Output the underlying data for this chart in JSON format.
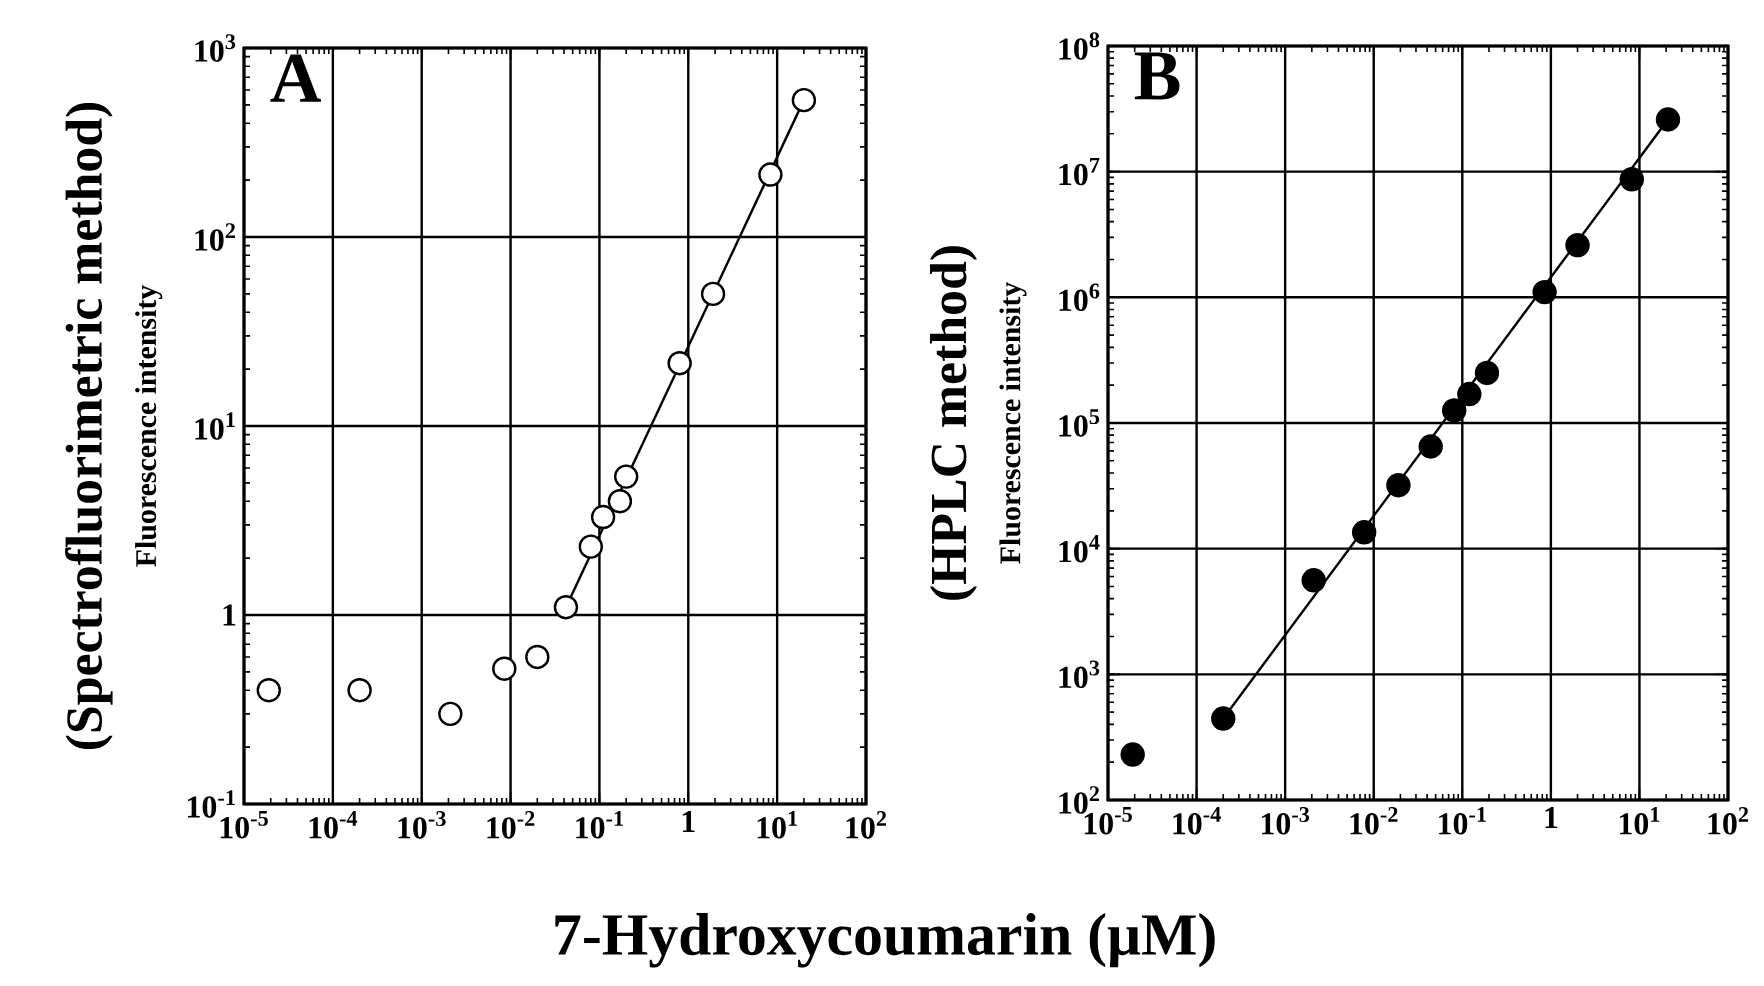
{
  "chart_data": [
    {
      "type": "scatter",
      "title": "A",
      "xlabel": "7-Hydroxycoumarin (μM)",
      "ylabel": "Fluorescence intensity",
      "annotations": [
        "(Spectrofluorimetric method)"
      ],
      "log": "xy",
      "grid": true,
      "xlim": [
        1e-05,
        100
      ],
      "xticks": [
        {
          "value": 1e-05,
          "label": "10$^{-5}$"
        },
        {
          "value": 0.0001,
          "label": "10$^{-4}$"
        },
        {
          "value": 0.001,
          "label": "10$^{-3}$"
        },
        {
          "value": 0.01,
          "label": "10$^{-2}$"
        },
        {
          "value": 0.1,
          "label": "10$^{-1}$"
        },
        1,
        {
          "value": 10,
          "label": "10$^{1}$"
        },
        {
          "value": 100,
          "label": "10$^{2}$"
        }
      ],
      "ylim": [
        0.1,
        1000
      ],
      "yticks": [
        {
          "value": 0.1,
          "label": "10$^{-1}$"
        },
        1,
        {
          "value": 10,
          "label": "10$^{1}$"
        },
        {
          "value": 100,
          "label": "10$^{2}$"
        },
        {
          "value": 1000,
          "label": "10$^{3}$"
        }
      ],
      "series": [
        {
          "marker": "circle",
          "color": "#ffffff",
          "x": [
            1.9e-05,
            0.0002,
            0.0021,
            0.0085,
            0.02,
            0.042,
            0.08,
            0.11,
            0.17,
            0.2,
            0.8,
            1.9,
            8.4,
            20
          ],
          "values": [
            0.4,
            0.4,
            0.3,
            0.52,
            0.6,
            1.1,
            2.3,
            3.3,
            4.0,
            5.4,
            21.5,
            50,
            214,
            530
          ]
        },
        {
          "type": "line",
          "marker": "none",
          "color": "#000000",
          "x": [
            0.042,
            20
          ],
          "values": [
            1.1,
            530
          ]
        }
      ]
    },
    {
      "type": "scatter",
      "title": "B",
      "ylabel": "Fluorescence intensity",
      "annotations": [
        "(HPLC method)"
      ],
      "log": "xy",
      "grid": true,
      "xlim": [
        1e-05,
        100
      ],
      "xticks": [
        {
          "value": 1e-05,
          "label": "10$^{-5}$"
        },
        {
          "value": 0.0001,
          "label": "10$^{-4}$"
        },
        {
          "value": 0.001,
          "label": "10$^{-3}$"
        },
        {
          "value": 0.01,
          "label": "10$^{-2}$"
        },
        {
          "value": 0.1,
          "label": "10$^{-1}$"
        },
        1,
        {
          "value": 10,
          "label": "10$^{1}$"
        },
        {
          "value": 100,
          "label": "10$^{2}$"
        }
      ],
      "ylim": [
        100,
        100000000
      ],
      "yticks": [
        {
          "value": 100,
          "label": "10$^{2}$"
        },
        {
          "value": 1000,
          "label": "10$^{3}$"
        },
        {
          "value": 10000,
          "label": "10$^{4}$"
        },
        {
          "value": 100000,
          "label": "10$^{5}$"
        },
        {
          "value": 1000000,
          "label": "10$^{6}$"
        },
        {
          "value": 10000000,
          "label": "10$^{7}$"
        },
        {
          "value": 100000000,
          "label": "10$^{8}$"
        }
      ],
      "series": [
        {
          "marker": "circle",
          "color": "#000000",
          "x": [
            1.9e-05,
            0.0002,
            0.0021,
            0.0078,
            0.019,
            0.044,
            0.081,
            0.12,
            0.19,
            0.85,
            2.0,
            8.2,
            21
          ],
          "values": [
            230,
            445,
            5600,
            13500,
            32000,
            65000,
            126000,
            170000,
            250000,
            1100000,
            2600000,
            8700000,
            26000000
          ]
        },
        {
          "type": "line",
          "marker": "none",
          "color": "#000000",
          "x": [
            0.0002,
            21
          ],
          "values": [
            445,
            26000000
          ]
        }
      ]
    }
  ]
}
